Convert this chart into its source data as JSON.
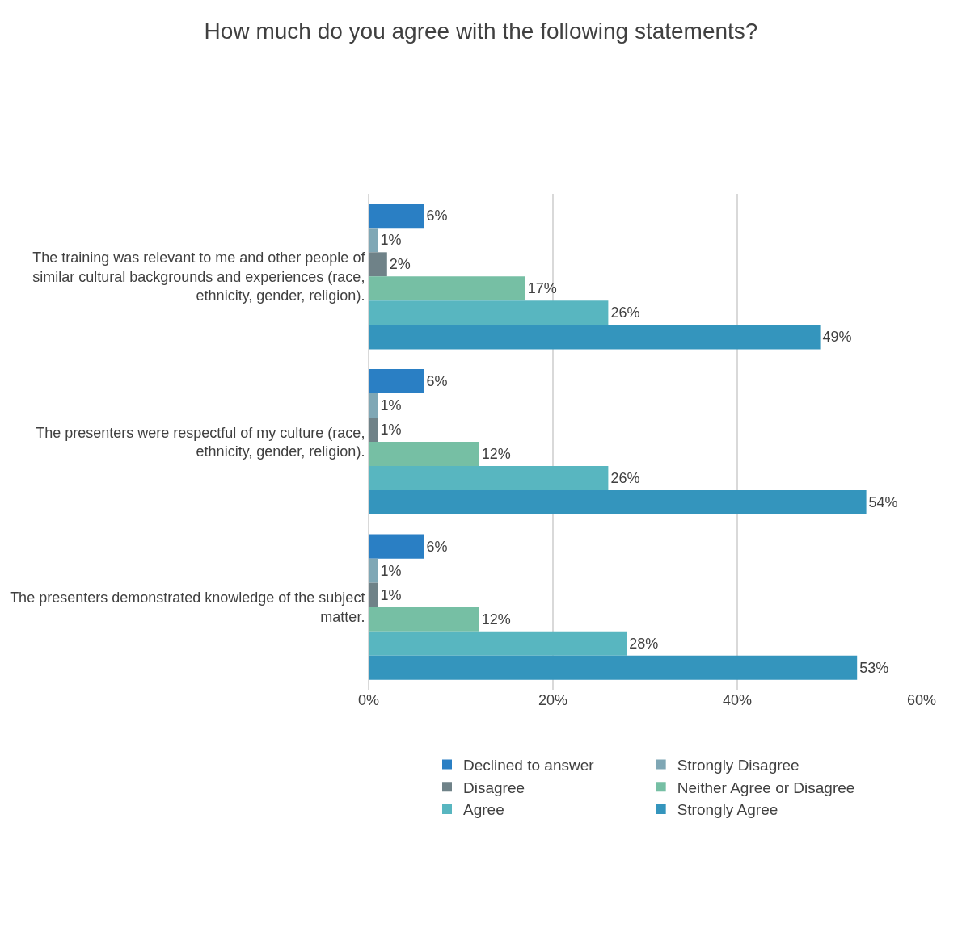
{
  "chart_data": {
    "type": "bar",
    "orientation": "horizontal",
    "title": "How much do you agree with the following statements?",
    "categories": [
      "The training was relevant to me and other people of similar cultural backgrounds and experiences (race, ethnicity, gender, religion).",
      "The presenters were respectful of my culture (race, ethnicity, gender, religion).",
      "The presenters demonstrated knowledge of the subject matter."
    ],
    "series": [
      {
        "name": "Declined to answer",
        "color": "#2a7fc4",
        "values": [
          6,
          6,
          6
        ],
        "value_labels": [
          "6%",
          "6%",
          "6%"
        ]
      },
      {
        "name": "Strongly Disagree",
        "color": "#7fa7b5",
        "values": [
          1,
          1,
          1
        ],
        "value_labels": [
          "1%",
          "1%",
          "1%"
        ]
      },
      {
        "name": "Disagree",
        "color": "#6f8288",
        "values": [
          2,
          1,
          1
        ],
        "value_labels": [
          "2%",
          "1%",
          "1%"
        ]
      },
      {
        "name": "Neither Agree or Disagree",
        "color": "#76bfa4",
        "values": [
          17,
          12,
          12
        ],
        "value_labels": [
          "17%",
          "12%",
          "12%"
        ]
      },
      {
        "name": "Agree",
        "color": "#58b6c0",
        "values": [
          26,
          26,
          28
        ],
        "value_labels": [
          "26%",
          "26%",
          "28%"
        ]
      },
      {
        "name": "Strongly Agree",
        "color": "#3495bd",
        "values": [
          49,
          54,
          53
        ],
        "value_labels": [
          "49%",
          "54%",
          "53%"
        ]
      }
    ],
    "xlim": [
      0,
      60
    ],
    "xticks": [
      {
        "value": 0,
        "label": "0%"
      },
      {
        "value": 20,
        "label": "20%"
      },
      {
        "value": 40,
        "label": "40%"
      },
      {
        "value": 60,
        "label": "60%"
      }
    ],
    "grid": "x",
    "legend": "bottom"
  }
}
